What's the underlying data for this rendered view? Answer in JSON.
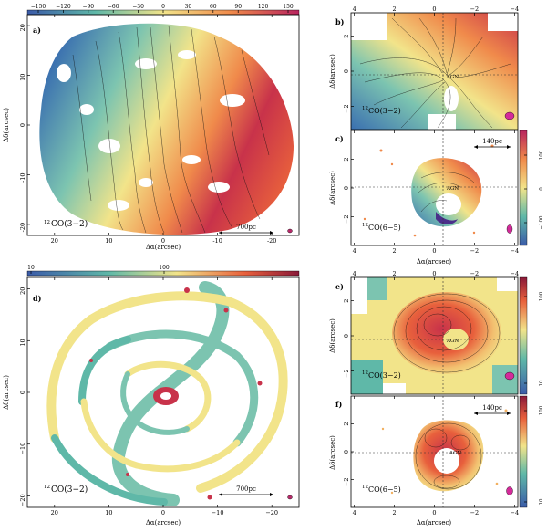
{
  "figure": {
    "panels": [
      {
        "id": "a",
        "letter": "a)",
        "xlabel": "Δα(arcsec)",
        "ylabel": "Δδ(arcsec)",
        "xticks": [
          "20",
          "10",
          "0",
          "-10",
          "-20"
        ],
        "yticks": [
          "20",
          "10",
          "0",
          "-10",
          "-20"
        ],
        "label": "CO(3−2)",
        "label_iso": "12",
        "scale_bar": "700pc",
        "colorbar": {
          "ticks": [
            "−150",
            "−120",
            "−90",
            "−60",
            "−30",
            "0",
            "30",
            "60",
            "90",
            "120",
            "150"
          ]
        }
      },
      {
        "id": "b",
        "letter": "b)",
        "ylabel": "Δδ(arcsec)",
        "xticks_top": [
          "4",
          "2",
          "0",
          "−2",
          "−4"
        ],
        "yticks": [
          "2",
          "0",
          "−2"
        ],
        "label": "CO(3−2)",
        "label_iso": "12",
        "agn": "AGN"
      },
      {
        "id": "c",
        "letter": "c)",
        "xlabel": "Δα(arcsec)",
        "ylabel": "Δδ(arcsec)",
        "xticks": [
          "4",
          "2",
          "0",
          "−2",
          "−4"
        ],
        "yticks": [
          "2",
          "0",
          "−2"
        ],
        "label": "CO(6−5)",
        "label_iso": "12",
        "agn": "AGN",
        "scale_bar": "140pc",
        "colorbar": {
          "ticks": [
            "100",
            "0",
            "−100"
          ]
        }
      },
      {
        "id": "d",
        "letter": "d)",
        "xlabel": "Δα(arcsec)",
        "ylabel": "Δδ(arcsec)",
        "xticks": [
          "20",
          "10",
          "0",
          "−10",
          "−20"
        ],
        "yticks": [
          "20",
          "10",
          "0",
          "−10",
          "−20"
        ],
        "label": "CO(3−2)",
        "label_iso": "12",
        "scale_bar": "700pc",
        "colorbar": {
          "ticks": [
            "10",
            "100"
          ]
        }
      },
      {
        "id": "e",
        "letter": "e)",
        "ylabel": "Δδ(arcsec)",
        "xticks_top": [
          "4",
          "2",
          "0",
          "−2",
          "−4"
        ],
        "yticks": [
          "2",
          "0",
          "−2"
        ],
        "label": "CO(3−2)",
        "label_iso": "12",
        "agn": "AGN",
        "colorbar": {
          "ticks": [
            "100",
            "10"
          ]
        }
      },
      {
        "id": "f",
        "letter": "f)",
        "xlabel": "Δα(arcsec)",
        "ylabel": "Δδ(arcsec)",
        "xticks": [
          "4",
          "2",
          "0",
          "−2",
          "−4"
        ],
        "yticks": [
          "2",
          "0",
          "−2"
        ],
        "label": "CO(6−5)",
        "label_iso": "12",
        "agn": "AGN",
        "scale_bar": "140pc",
        "colorbar": {
          "ticks": [
            "100",
            "10"
          ]
        }
      }
    ]
  },
  "colors": {
    "blue": "#3a6fb0",
    "teal": "#5fb8a8",
    "yellow": "#f2e48a",
    "orange": "#f08a4b",
    "red": "#c8324a",
    "magenta": "#b82a6a",
    "dark": "#7a1838"
  }
}
